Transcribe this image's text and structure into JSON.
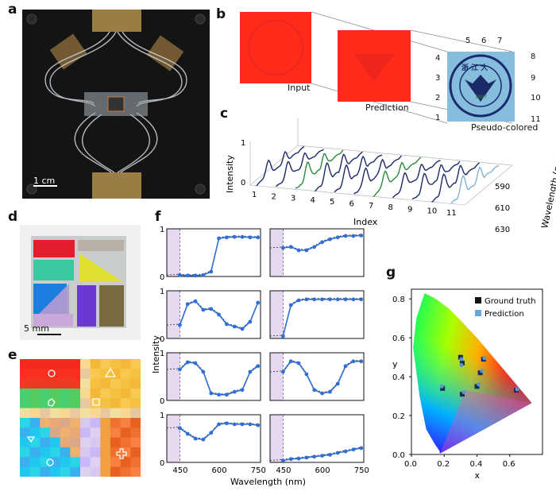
{
  "panels": {
    "a": "a",
    "b": "b",
    "c": "c",
    "d": "d",
    "e": "e",
    "f": "f",
    "g": "g"
  },
  "a": {
    "scale_label": "1 cm"
  },
  "b": {
    "input_label": "Input",
    "prediction_label": "Prediction",
    "pseudo_label": "Pseudo-colored",
    "indices": [
      "1",
      "2",
      "3",
      "4",
      "5",
      "6",
      "7",
      "8",
      "9",
      "10",
      "11"
    ],
    "logo_text": {
      "chars": "浙 江 大",
      "univ": "ZHEJIANG UNIVERSITY",
      "year": "1897"
    }
  },
  "c": {
    "ylabel": "Intensity",
    "xlabel": "Index",
    "zlabel": "Wavelength (nm)",
    "yticks": [
      "0",
      "1"
    ],
    "index_ticks": [
      "1",
      "2",
      "3",
      "4",
      "5",
      "6",
      "7",
      "8",
      "9",
      "10",
      "11"
    ],
    "wl_ticks": [
      "590",
      "610",
      "630"
    ]
  },
  "d": {
    "scale_label": "5 mm"
  },
  "f": {
    "ylabel": "Intensity",
    "xlabel": "Wavelength (nm)",
    "xticks": [
      "450",
      "600",
      "750"
    ],
    "yticks": [
      "0",
      "1"
    ]
  },
  "g": {
    "xlabel": "x",
    "ylabel": "y",
    "xticks": [
      "0.0",
      "0.2",
      "0.4",
      "0.6"
    ],
    "yticks": [
      "0.0",
      "0.2",
      "0.4",
      "0.6",
      "0.8"
    ],
    "legend": [
      "Ground truth",
      "Prediction"
    ]
  },
  "colors": {
    "accent": "#2f6fd6",
    "navy": "#1b2a66",
    "green": "#2a8a3a",
    "lightblue": "#7fb2d6",
    "purple_band": "#e5d8ef"
  },
  "chart_data": [
    {
      "panel": "f",
      "type": "line",
      "xlim": [
        400,
        760
      ],
      "ylim": [
        0,
        1
      ],
      "series": [
        {
          "x": [
            450,
            480,
            510,
            540,
            570,
            600,
            630,
            660,
            690,
            720,
            750
          ],
          "values": [
            0.03,
            0.02,
            0.02,
            0.03,
            0.1,
            0.8,
            0.82,
            0.83,
            0.83,
            0.82,
            0.82
          ]
        },
        {
          "x": [
            450,
            480,
            510,
            540,
            570,
            600,
            630,
            660,
            690,
            720,
            750
          ],
          "values": [
            0.6,
            0.62,
            0.55,
            0.55,
            0.62,
            0.72,
            0.78,
            0.82,
            0.85,
            0.85,
            0.86
          ]
        },
        {
          "x": [
            450,
            480,
            510,
            540,
            570,
            600,
            630,
            660,
            690,
            720,
            750
          ],
          "values": [
            0.28,
            0.72,
            0.78,
            0.6,
            0.62,
            0.5,
            0.3,
            0.25,
            0.2,
            0.35,
            0.75
          ]
        },
        {
          "x": [
            450,
            480,
            510,
            540,
            570,
            600,
            630,
            660,
            690,
            720,
            750
          ],
          "values": [
            0.05,
            0.7,
            0.8,
            0.82,
            0.82,
            0.82,
            0.82,
            0.82,
            0.82,
            0.82,
            0.82
          ]
        },
        {
          "x": [
            450,
            480,
            510,
            540,
            570,
            600,
            630,
            660,
            690,
            720,
            750
          ],
          "values": [
            0.65,
            0.8,
            0.78,
            0.6,
            0.15,
            0.12,
            0.12,
            0.18,
            0.22,
            0.6,
            0.72
          ]
        },
        {
          "x": [
            450,
            480,
            510,
            540,
            570,
            600,
            630,
            660,
            690,
            720,
            750
          ],
          "values": [
            0.6,
            0.82,
            0.78,
            0.55,
            0.22,
            0.15,
            0.18,
            0.35,
            0.72,
            0.82,
            0.82
          ]
        },
        {
          "x": [
            450,
            480,
            510,
            540,
            570,
            600,
            630,
            660,
            690,
            720,
            750
          ],
          "values": [
            0.72,
            0.6,
            0.5,
            0.48,
            0.62,
            0.8,
            0.82,
            0.8,
            0.8,
            0.8,
            0.78
          ]
        },
        {
          "x": [
            450,
            480,
            510,
            540,
            570,
            600,
            630,
            660,
            690,
            720,
            750
          ],
          "values": [
            0.04,
            0.07,
            0.08,
            0.1,
            0.12,
            0.14,
            0.16,
            0.2,
            0.23,
            0.27,
            0.3
          ]
        }
      ]
    },
    {
      "panel": "g",
      "type": "scatter",
      "xlim": [
        0,
        0.8
      ],
      "ylim": [
        0,
        0.85
      ],
      "series": [
        {
          "name": "Ground truth",
          "x": [
            0.64,
            0.44,
            0.42,
            0.4,
            0.31,
            0.31,
            0.19,
            0.3
          ],
          "values": [
            0.33,
            0.49,
            0.42,
            0.35,
            0.47,
            0.31,
            0.34,
            0.5
          ]
        },
        {
          "name": "Prediction",
          "x": [
            0.645,
            0.445,
            0.43,
            0.41,
            0.305,
            0.32,
            0.185,
            0.305
          ],
          "values": [
            0.335,
            0.495,
            0.43,
            0.36,
            0.46,
            0.32,
            0.35,
            0.49
          ]
        }
      ]
    }
  ]
}
